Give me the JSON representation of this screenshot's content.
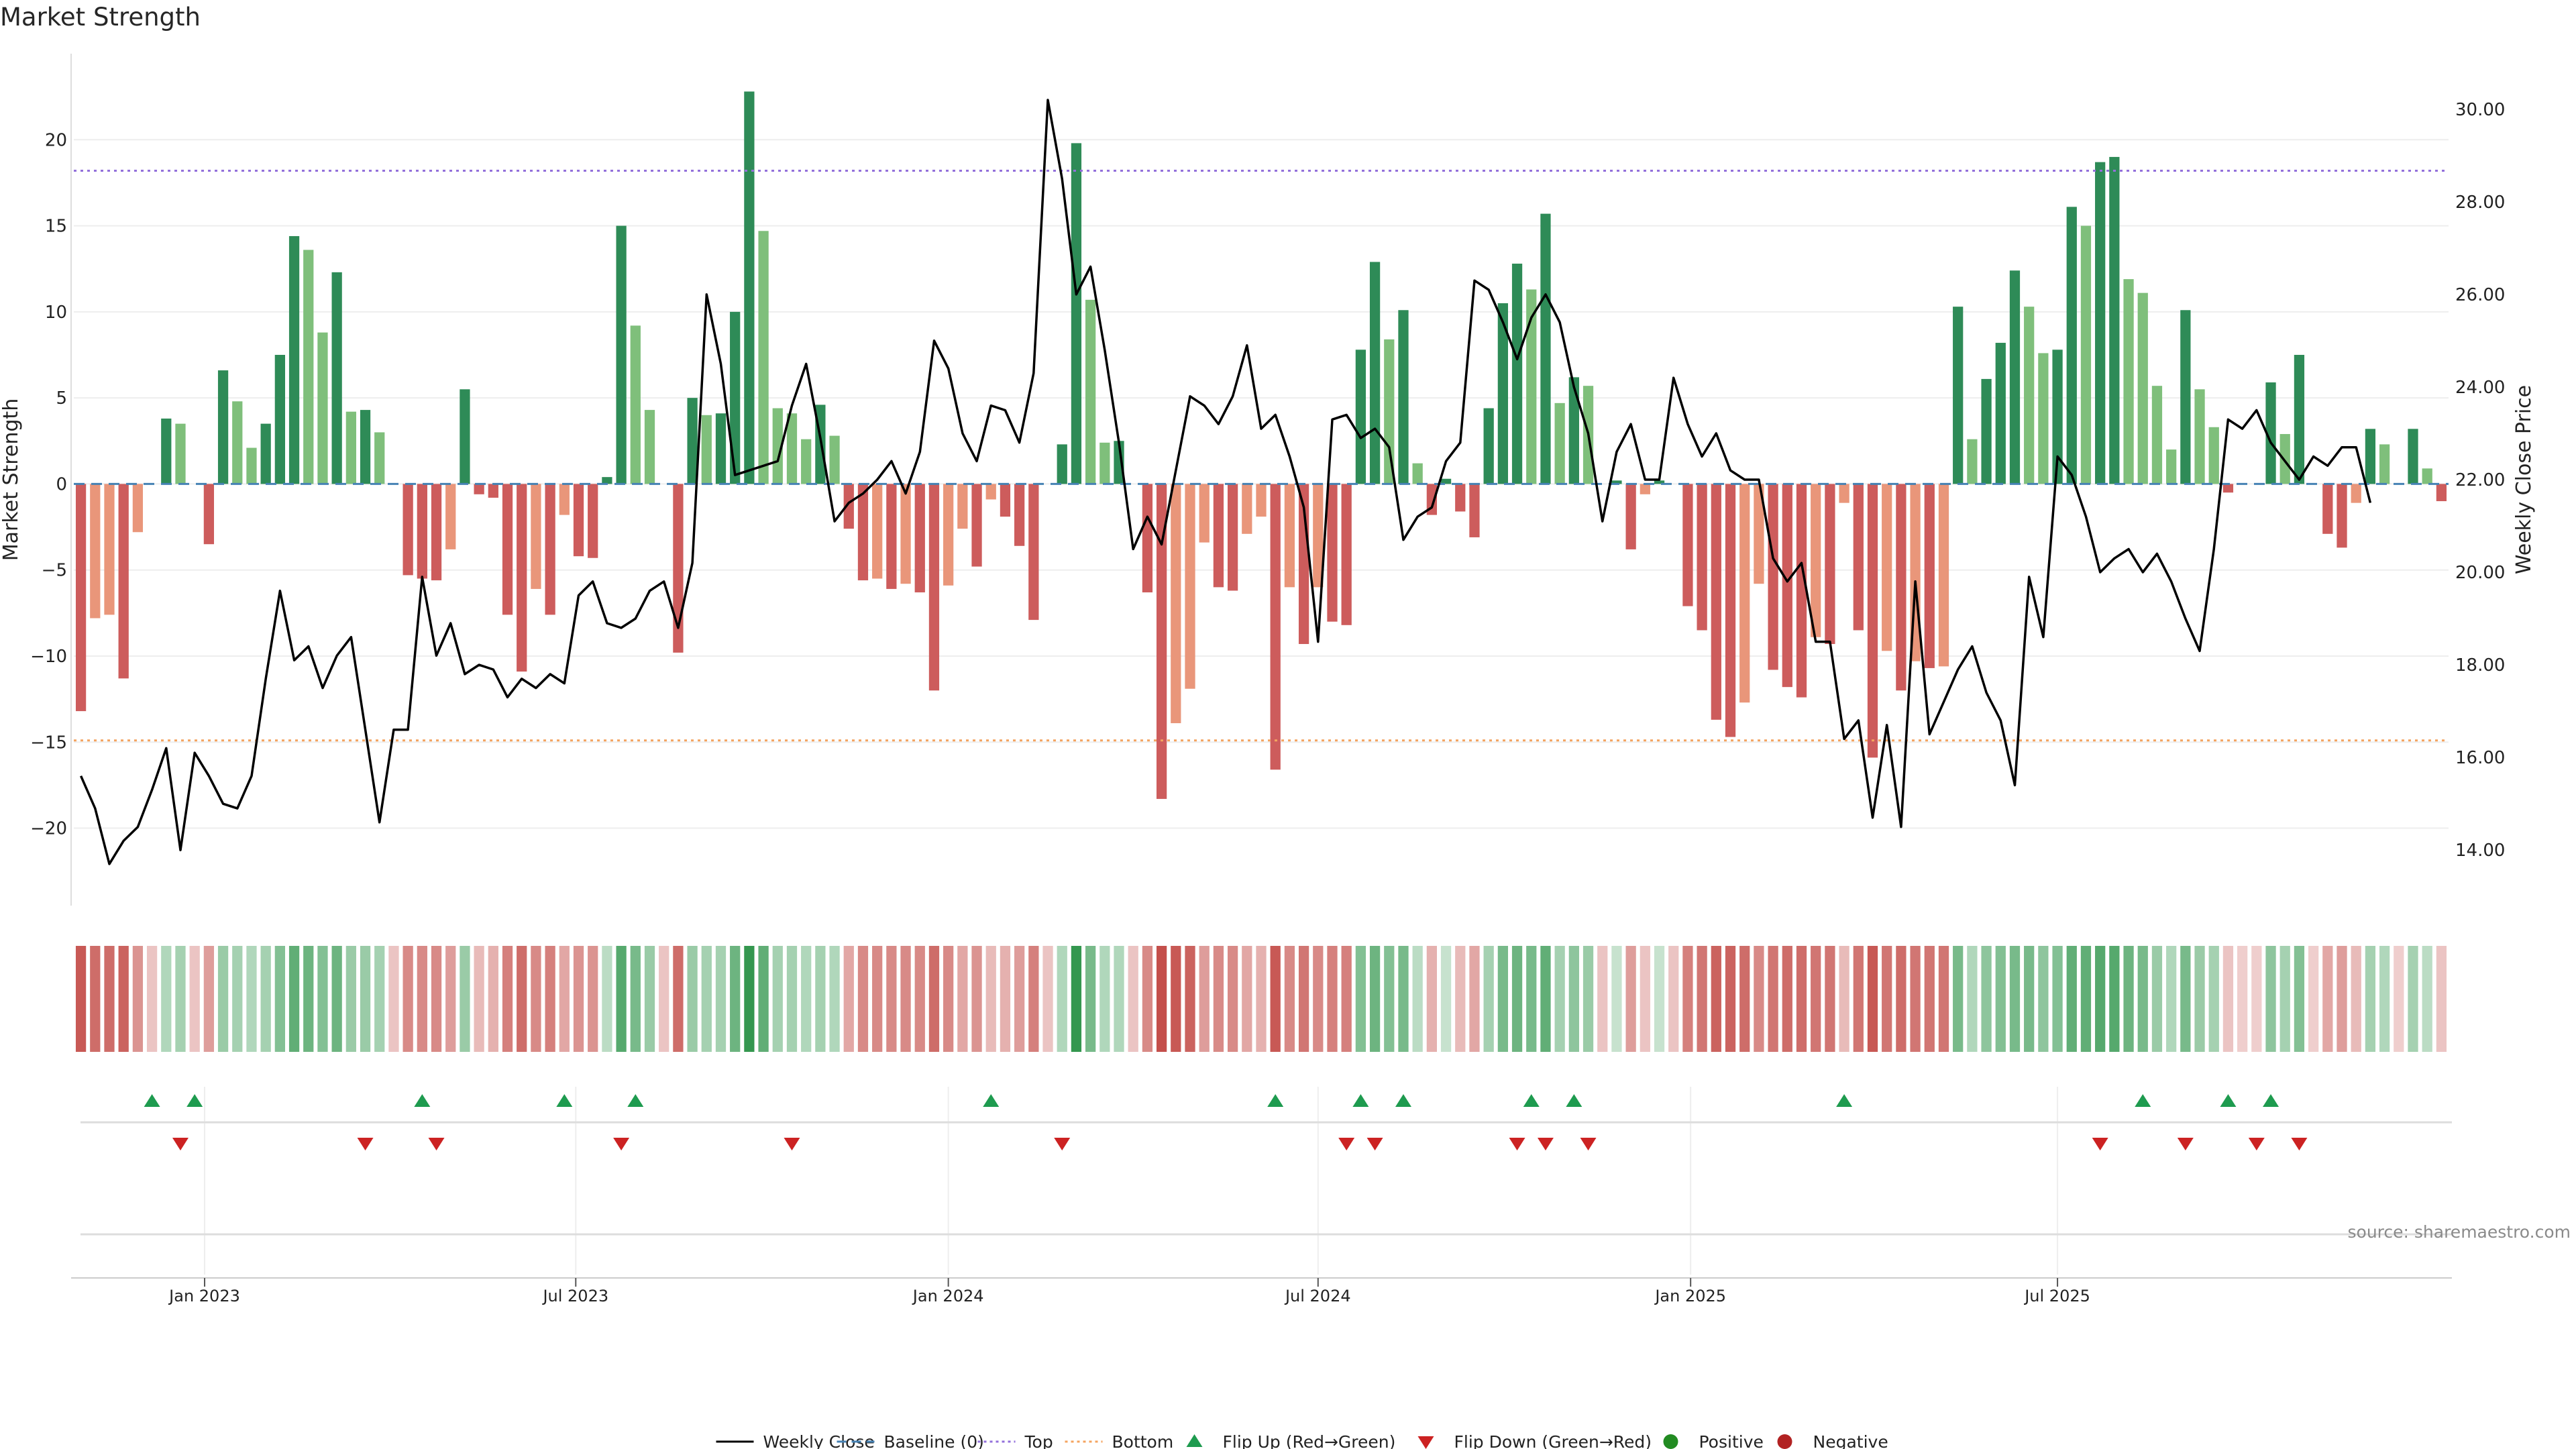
{
  "title": "Market Strength",
  "source": "source: sharemaestro.com",
  "colors": {
    "pos_dark": "#2e8b57",
    "pos_light": "#7fbf7b",
    "neg_dark": "#cd5c5c",
    "neg_light": "#e9967a",
    "line": "#000000",
    "top_line": "#9370db",
    "bottom_line": "#f4a460",
    "baseline": "#4682b4",
    "flip_up": "#1e9b4f",
    "flip_down": "#cc2222",
    "positive_dot": "#228b22",
    "negative_dot": "#b22222"
  },
  "chart_data": {
    "type": "bar+line",
    "title": "Market Strength",
    "ylabel": "Market Strength",
    "y2label": "Weekly Close Price",
    "ylim": [
      -24.5,
      25
    ],
    "y2lim": [
      12.8,
      31.2
    ],
    "yticks": [
      -20,
      -15,
      -10,
      -5,
      0,
      5,
      10,
      15,
      20
    ],
    "y2ticks": [
      "14.00",
      "16.00",
      "18.00",
      "20.00",
      "22.00",
      "24.00",
      "26.00",
      "28.00",
      "30.00"
    ],
    "top_level": 18.2,
    "bottom_level": -14.9,
    "xticks": [
      {
        "label": "Jan 2023",
        "week": 9.2
      },
      {
        "label": "Jul 2023",
        "week": 35.3
      },
      {
        "label": "Jan 2024",
        "week": 61.5
      },
      {
        "label": "Jul 2024",
        "week": 87.5
      },
      {
        "label": "Jan 2025",
        "week": 113.7
      },
      {
        "label": "Jul 2025",
        "week": 139.5
      }
    ],
    "strength": [
      -13.2,
      -7.8,
      -7.6,
      -11.3,
      -2.8,
      0,
      3.8,
      3.5,
      0,
      -3.5,
      6.6,
      4.8,
      2.1,
      3.5,
      7.5,
      14.4,
      13.6,
      8.8,
      12.3,
      4.2,
      4.3,
      3.0,
      0,
      -5.3,
      -5.5,
      -5.6,
      -3.8,
      5.5,
      -0.6,
      -0.8,
      -7.6,
      -10.9,
      -6.1,
      -7.6,
      -1.8,
      -4.2,
      -4.3,
      0.4,
      15.0,
      9.2,
      4.3,
      0,
      -9.8,
      5.0,
      4.0,
      4.1,
      10.0,
      22.8,
      14.7,
      4.4,
      4.1,
      2.6,
      4.6,
      2.8,
      -2.6,
      -5.6,
      -5.5,
      -6.1,
      -5.8,
      -6.3,
      -12.0,
      -5.9,
      -2.6,
      -4.8,
      -0.9,
      -1.9,
      -3.6,
      -7.9,
      0,
      2.3,
      19.8,
      10.7,
      2.4,
      2.5,
      0,
      -6.3,
      -18.3,
      -13.9,
      -11.9,
      -3.4,
      -6.0,
      -6.2,
      -2.9,
      -1.9,
      -16.6,
      -6.0,
      -9.3,
      -6.0,
      -8.0,
      -8.2,
      7.8,
      12.9,
      8.4,
      10.1,
      1.2,
      -1.8,
      0.3,
      -1.6,
      -3.1,
      4.4,
      10.5,
      12.8,
      11.3,
      15.7,
      4.7,
      6.2,
      5.7,
      0,
      0.2,
      -3.8,
      -0.6,
      0.2,
      0,
      -7.1,
      -8.5,
      -13.7,
      -14.7,
      -12.7,
      -5.8,
      -10.8,
      -11.8,
      -12.4,
      -8.9,
      -9.3,
      -1.1,
      -8.5,
      -15.9,
      -9.7,
      -12.0,
      -10.3,
      -10.7,
      -10.6,
      10.3,
      2.6,
      6.1,
      8.2,
      12.4,
      10.3,
      7.6,
      7.8,
      16.1,
      15.0,
      18.7,
      19.0,
      11.9,
      11.1,
      5.7,
      2.0,
      10.1,
      5.5,
      3.3,
      -0.5,
      0,
      0,
      5.9,
      2.9,
      7.5,
      0,
      -2.9,
      -3.7,
      -1.1,
      3.2,
      2.3,
      0,
      3.2,
      0.9,
      -1.0
    ],
    "close": [
      15.6,
      14.9,
      13.7,
      14.2,
      14.5,
      15.3,
      16.2,
      14.0,
      16.1,
      15.6,
      15.0,
      14.9,
      15.6,
      17.7,
      19.6,
      18.1,
      18.4,
      17.5,
      18.2,
      18.6,
      16.6,
      14.6,
      16.6,
      16.6,
      19.9,
      18.2,
      18.9,
      17.8,
      18.0,
      17.9,
      17.3,
      17.7,
      17.5,
      17.8,
      17.6,
      19.5,
      19.8,
      18.9,
      18.8,
      19.0,
      19.6,
      19.8,
      18.8,
      20.2,
      26.0,
      24.5,
      22.1,
      22.2,
      22.3,
      22.4,
      23.6,
      24.5,
      22.9,
      21.1,
      21.5,
      21.7,
      22.0,
      22.4,
      21.7,
      22.6,
      25.0,
      24.4,
      23.0,
      22.4,
      23.6,
      23.5,
      22.8,
      24.3,
      30.2,
      28.5,
      26.0,
      26.6,
      24.8,
      22.8,
      20.5,
      21.2,
      20.6,
      22.2,
      23.8,
      23.6,
      23.2,
      23.8,
      24.9,
      23.1,
      23.4,
      22.5,
      21.4,
      18.5,
      23.3,
      23.4,
      22.9,
      23.1,
      22.7,
      20.7,
      21.2,
      21.4,
      22.4,
      22.8,
      26.3,
      26.1,
      25.4,
      24.6,
      25.5,
      26.0,
      25.4,
      24.0,
      23.0,
      21.1,
      22.6,
      23.2,
      22.0,
      22.0,
      24.2,
      23.2,
      22.5,
      23.0,
      22.2,
      22.0,
      22.0,
      20.3,
      19.8,
      20.2,
      18.5,
      18.5,
      16.4,
      16.8,
      14.7,
      16.7,
      14.5,
      19.8,
      16.5,
      17.2,
      17.9,
      18.4,
      17.4,
      16.8,
      15.4,
      19.9,
      18.6,
      22.5,
      22.1,
      21.2,
      20.0,
      20.3,
      20.5,
      20.0,
      20.4,
      19.8,
      19.0,
      18.3,
      20.5,
      23.3,
      23.1,
      23.5,
      22.8,
      22.4,
      22.0,
      22.5,
      22.3,
      22.7,
      22.7,
      21.5
    ],
    "heatmap_levels": [
      -0.85,
      -0.75,
      -0.75,
      -0.8,
      -0.55,
      -0.3,
      0.35,
      0.4,
      -0.3,
      -0.5,
      0.45,
      0.4,
      0.35,
      0.4,
      0.55,
      0.7,
      0.65,
      0.55,
      0.65,
      0.45,
      0.45,
      0.4,
      -0.3,
      -0.6,
      -0.6,
      -0.6,
      -0.5,
      0.45,
      -0.35,
      -0.4,
      -0.65,
      -0.75,
      -0.6,
      -0.65,
      -0.45,
      -0.55,
      -0.55,
      0.3,
      0.75,
      0.6,
      0.45,
      -0.3,
      -0.75,
      0.45,
      0.4,
      0.4,
      0.65,
      0.9,
      0.7,
      0.4,
      0.4,
      0.35,
      0.4,
      0.35,
      -0.45,
      -0.6,
      -0.6,
      -0.6,
      -0.6,
      -0.6,
      -0.75,
      -0.6,
      -0.45,
      -0.55,
      -0.35,
      -0.4,
      -0.5,
      -0.65,
      -0.3,
      0.35,
      0.9,
      0.6,
      0.35,
      0.35,
      -0.3,
      -0.6,
      -0.9,
      -0.85,
      -0.8,
      -0.5,
      -0.6,
      -0.6,
      -0.45,
      -0.4,
      -0.85,
      -0.6,
      -0.7,
      -0.6,
      -0.65,
      -0.65,
      0.55,
      0.65,
      0.55,
      0.6,
      0.3,
      -0.4,
      0.25,
      -0.35,
      -0.45,
      0.4,
      0.6,
      0.65,
      0.6,
      0.7,
      0.4,
      0.5,
      0.45,
      -0.3,
      0.25,
      -0.5,
      -0.3,
      0.25,
      -0.3,
      -0.65,
      -0.7,
      -0.8,
      -0.8,
      -0.75,
      -0.6,
      -0.7,
      -0.75,
      -0.75,
      -0.7,
      -0.7,
      -0.35,
      -0.7,
      -0.85,
      -0.7,
      -0.75,
      -0.7,
      -0.7,
      -0.7,
      0.6,
      0.35,
      0.5,
      0.55,
      0.6,
      0.6,
      0.5,
      0.55,
      0.7,
      0.7,
      0.75,
      0.75,
      0.65,
      0.6,
      0.45,
      0.35,
      0.6,
      0.45,
      0.4,
      -0.3,
      -0.25,
      -0.25,
      0.5,
      0.4,
      0.55,
      -0.25,
      -0.45,
      -0.5,
      -0.35,
      0.4,
      0.35,
      -0.25,
      0.4,
      0.3,
      -0.3
    ],
    "flip_up_weeks": [
      5,
      8,
      24,
      34,
      39,
      64,
      84,
      90,
      93,
      102,
      105,
      124,
      145,
      151,
      154
    ],
    "flip_down_weeks": [
      7,
      20,
      25,
      38,
      50,
      69,
      89,
      91,
      101,
      103,
      106,
      142,
      148,
      153,
      156
    ],
    "legend": [
      {
        "label": "Weekly Close",
        "kind": "line"
      },
      {
        "label": "Baseline (0)",
        "kind": "dash"
      },
      {
        "label": "Top",
        "kind": "dot-purple"
      },
      {
        "label": "Bottom",
        "kind": "dot-orange"
      },
      {
        "label": "Flip Up (Red→Green)",
        "kind": "tri-up"
      },
      {
        "label": "Flip Down (Green→Red)",
        "kind": "tri-down"
      },
      {
        "label": "Positive",
        "kind": "dot-green"
      },
      {
        "label": "Negative",
        "kind": "dot-red"
      }
    ]
  }
}
